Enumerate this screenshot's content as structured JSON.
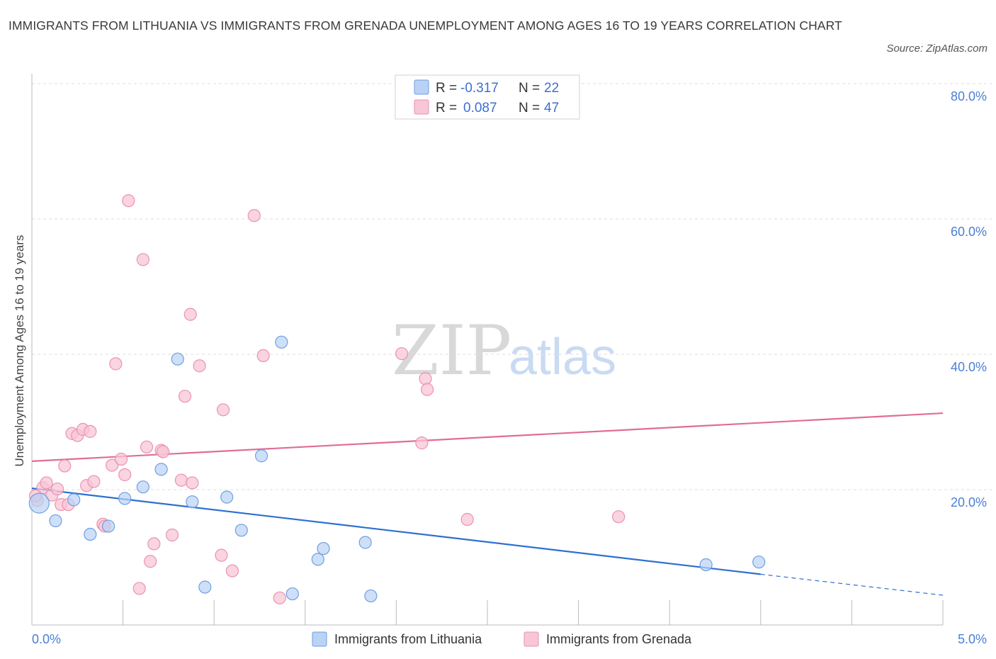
{
  "header": {
    "title": "IMMIGRANTS FROM LITHUANIA VS IMMIGRANTS FROM GRENADA UNEMPLOYMENT AMONG AGES 16 TO 19 YEARS CORRELATION CHART",
    "source": "Source: ZipAtlas.com"
  },
  "colors": {
    "lithuania_fill": "#b9d2f5",
    "lithuania_stroke": "#6f9fe0",
    "lithuania_line": "#2e6fd0",
    "grenada_fill": "#f8c6d6",
    "grenada_stroke": "#e993b0",
    "grenada_line": "#e06d96",
    "tick_label": "#4a7fd4",
    "grid": "#dcdcdc"
  },
  "legend": {
    "row1": {
      "r_label": "R = ",
      "r_value": "-0.317",
      "n_label": "N = ",
      "n_value": "22"
    },
    "row2": {
      "r_label": "R = ",
      "r_value": "0.087",
      "n_label": "N = ",
      "n_value": "47"
    }
  },
  "watermark": {
    "zip": "ZIP",
    "atlas": "atlas"
  },
  "chart_data": {
    "type": "scatter",
    "title": "IMMIGRANTS FROM LITHUANIA VS IMMIGRANTS FROM GRENADA UNEMPLOYMENT AMONG AGES 16 TO 19 YEARS CORRELATION CHART",
    "xlabel": "",
    "ylabel": "Unemployment Among Ages 16 to 19 years",
    "xlim": [
      0,
      5
    ],
    "ylim": [
      0,
      80
    ],
    "x_tick_labels": {
      "min": "0.0%",
      "max": "5.0%"
    },
    "y_ticks": [
      {
        "value": 20,
        "label": "20.0%"
      },
      {
        "value": 40,
        "label": "40.0%"
      },
      {
        "value": 60,
        "label": "60.0%"
      },
      {
        "value": 80,
        "label": "80.0%"
      }
    ],
    "series": [
      {
        "name": "Immigrants from Lithuania",
        "R": -0.317,
        "N": 22,
        "points": [
          [
            0.04,
            18.0
          ],
          [
            0.13,
            15.4
          ],
          [
            0.23,
            18.5
          ],
          [
            0.32,
            13.4
          ],
          [
            0.42,
            14.6
          ],
          [
            0.51,
            18.7
          ],
          [
            0.61,
            20.4
          ],
          [
            0.71,
            23.0
          ],
          [
            0.8,
            39.3
          ],
          [
            0.88,
            18.2
          ],
          [
            0.95,
            5.6
          ],
          [
            1.07,
            18.9
          ],
          [
            1.15,
            14.0
          ],
          [
            1.26,
            25.0
          ],
          [
            1.37,
            41.8
          ],
          [
            1.43,
            4.6
          ],
          [
            1.57,
            9.7
          ],
          [
            1.6,
            11.3
          ],
          [
            1.83,
            12.2
          ],
          [
            1.86,
            4.3
          ],
          [
            3.7,
            8.9
          ],
          [
            3.99,
            9.3
          ]
        ],
        "trend": {
          "x0": 0.0,
          "y0": 20.2,
          "x1": 4.0,
          "y1": 7.5,
          "dash_x1": 5.0,
          "dash_y1": 4.4
        }
      },
      {
        "name": "Immigrants from Grenada",
        "R": 0.087,
        "N": 47,
        "points": [
          [
            0.03,
            18.4
          ],
          [
            0.06,
            20.3
          ],
          [
            0.08,
            21.0
          ],
          [
            0.11,
            19.2
          ],
          [
            0.14,
            20.1
          ],
          [
            0.16,
            17.8
          ],
          [
            0.18,
            23.5
          ],
          [
            0.2,
            17.8
          ],
          [
            0.22,
            28.3
          ],
          [
            0.25,
            28.0
          ],
          [
            0.28,
            28.9
          ],
          [
            0.3,
            20.6
          ],
          [
            0.32,
            28.6
          ],
          [
            0.34,
            21.2
          ],
          [
            0.39,
            14.9
          ],
          [
            0.4,
            14.6
          ],
          [
            0.44,
            23.6
          ],
          [
            0.46,
            38.6
          ],
          [
            0.49,
            24.5
          ],
          [
            0.51,
            22.2
          ],
          [
            0.53,
            62.7
          ],
          [
            0.59,
            5.4
          ],
          [
            0.61,
            54.0
          ],
          [
            0.63,
            26.3
          ],
          [
            0.65,
            9.4
          ],
          [
            0.67,
            12.0
          ],
          [
            0.71,
            25.8
          ],
          [
            0.72,
            25.6
          ],
          [
            0.77,
            13.3
          ],
          [
            0.82,
            21.4
          ],
          [
            0.84,
            33.8
          ],
          [
            0.87,
            45.9
          ],
          [
            0.88,
            21.0
          ],
          [
            0.92,
            38.3
          ],
          [
            1.04,
            10.3
          ],
          [
            1.05,
            31.8
          ],
          [
            1.1,
            8.0
          ],
          [
            1.22,
            60.5
          ],
          [
            1.27,
            39.8
          ],
          [
            1.36,
            4.0
          ],
          [
            2.03,
            40.1
          ],
          [
            2.14,
            26.9
          ],
          [
            2.16,
            36.4
          ],
          [
            2.17,
            34.8
          ],
          [
            2.39,
            15.6
          ],
          [
            3.22,
            16.0
          ],
          [
            0.02,
            19.1
          ]
        ],
        "trend": {
          "x0": 0.0,
          "y0": 24.2,
          "x1": 5.0,
          "y1": 31.3
        }
      }
    ],
    "legend_entries": [
      "Immigrants from Lithuania",
      "Immigrants from Grenada"
    ]
  }
}
